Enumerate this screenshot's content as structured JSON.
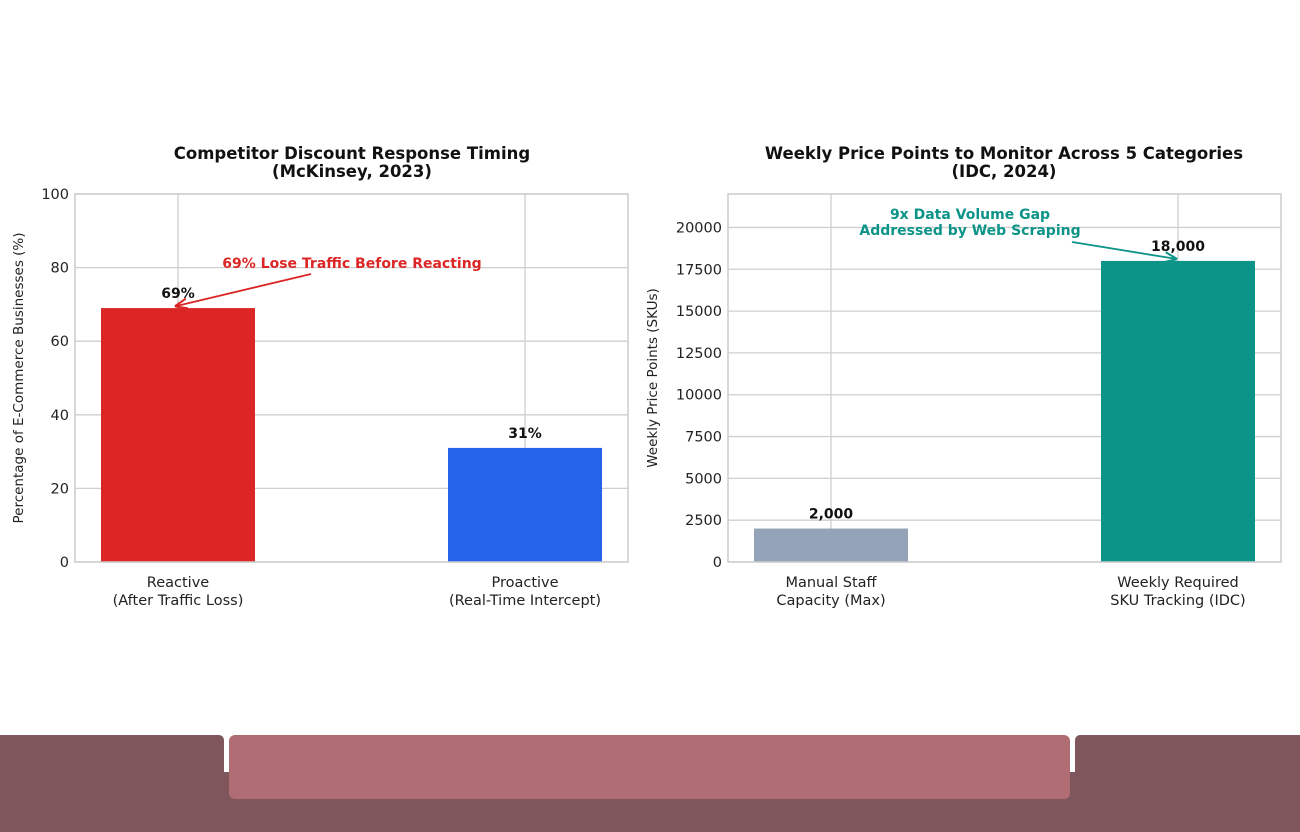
{
  "chart_data": [
    {
      "type": "bar",
      "title": "Competitor Discount Response Timing\n(McKinsey, 2023)",
      "xlabel": "",
      "ylabel": "Percentage of E-Commerce Businesses (%)",
      "categories": [
        "Reactive\n(After Traffic Loss)",
        "Proactive\n(Real-Time Intercept)"
      ],
      "values": [
        69,
        31
      ],
      "value_labels": [
        "69%",
        "31%"
      ],
      "colors": [
        "#dc2626",
        "#2563eb"
      ],
      "ylim": [
        0,
        100
      ],
      "yticks": [
        0,
        20,
        40,
        60,
        80,
        100
      ],
      "ytick_labels": [
        "0",
        "20",
        "40",
        "60",
        "80",
        "100"
      ],
      "grid": true,
      "annotation": {
        "text": "69% Lose Traffic Before Reacting",
        "color": "#dc2626",
        "points_to_category": 0,
        "points_to_value": 69
      }
    },
    {
      "type": "bar",
      "title": "Weekly Price Points to Monitor Across 5 Categories\n(IDC, 2024)",
      "xlabel": "",
      "ylabel": "Weekly Price Points (SKUs)",
      "categories": [
        "Manual Staff\nCapacity (Max)",
        "Weekly Required\nSKU Tracking (IDC)"
      ],
      "values": [
        2000,
        18000
      ],
      "value_labels": [
        "2,000",
        "18,000"
      ],
      "colors": [
        "#94a3b8",
        "#0d9488"
      ],
      "ylim": [
        0,
        22000
      ],
      "yticks": [
        0,
        2500,
        5000,
        7500,
        10000,
        12500,
        15000,
        17500,
        20000
      ],
      "ytick_labels": [
        "0",
        "2500",
        "5000",
        "7500",
        "10000",
        "12500",
        "15000",
        "17500",
        "20000"
      ],
      "grid": true,
      "annotation": {
        "text": "9x Data Volume Gap\nAddressed by Web Scraping",
        "color": "#0d9488",
        "points_to_category": 1,
        "points_to_value": 18000
      }
    }
  ],
  "colors": {
    "footer_dark": "#7f565c",
    "footer_accent": "#b06d73"
  }
}
